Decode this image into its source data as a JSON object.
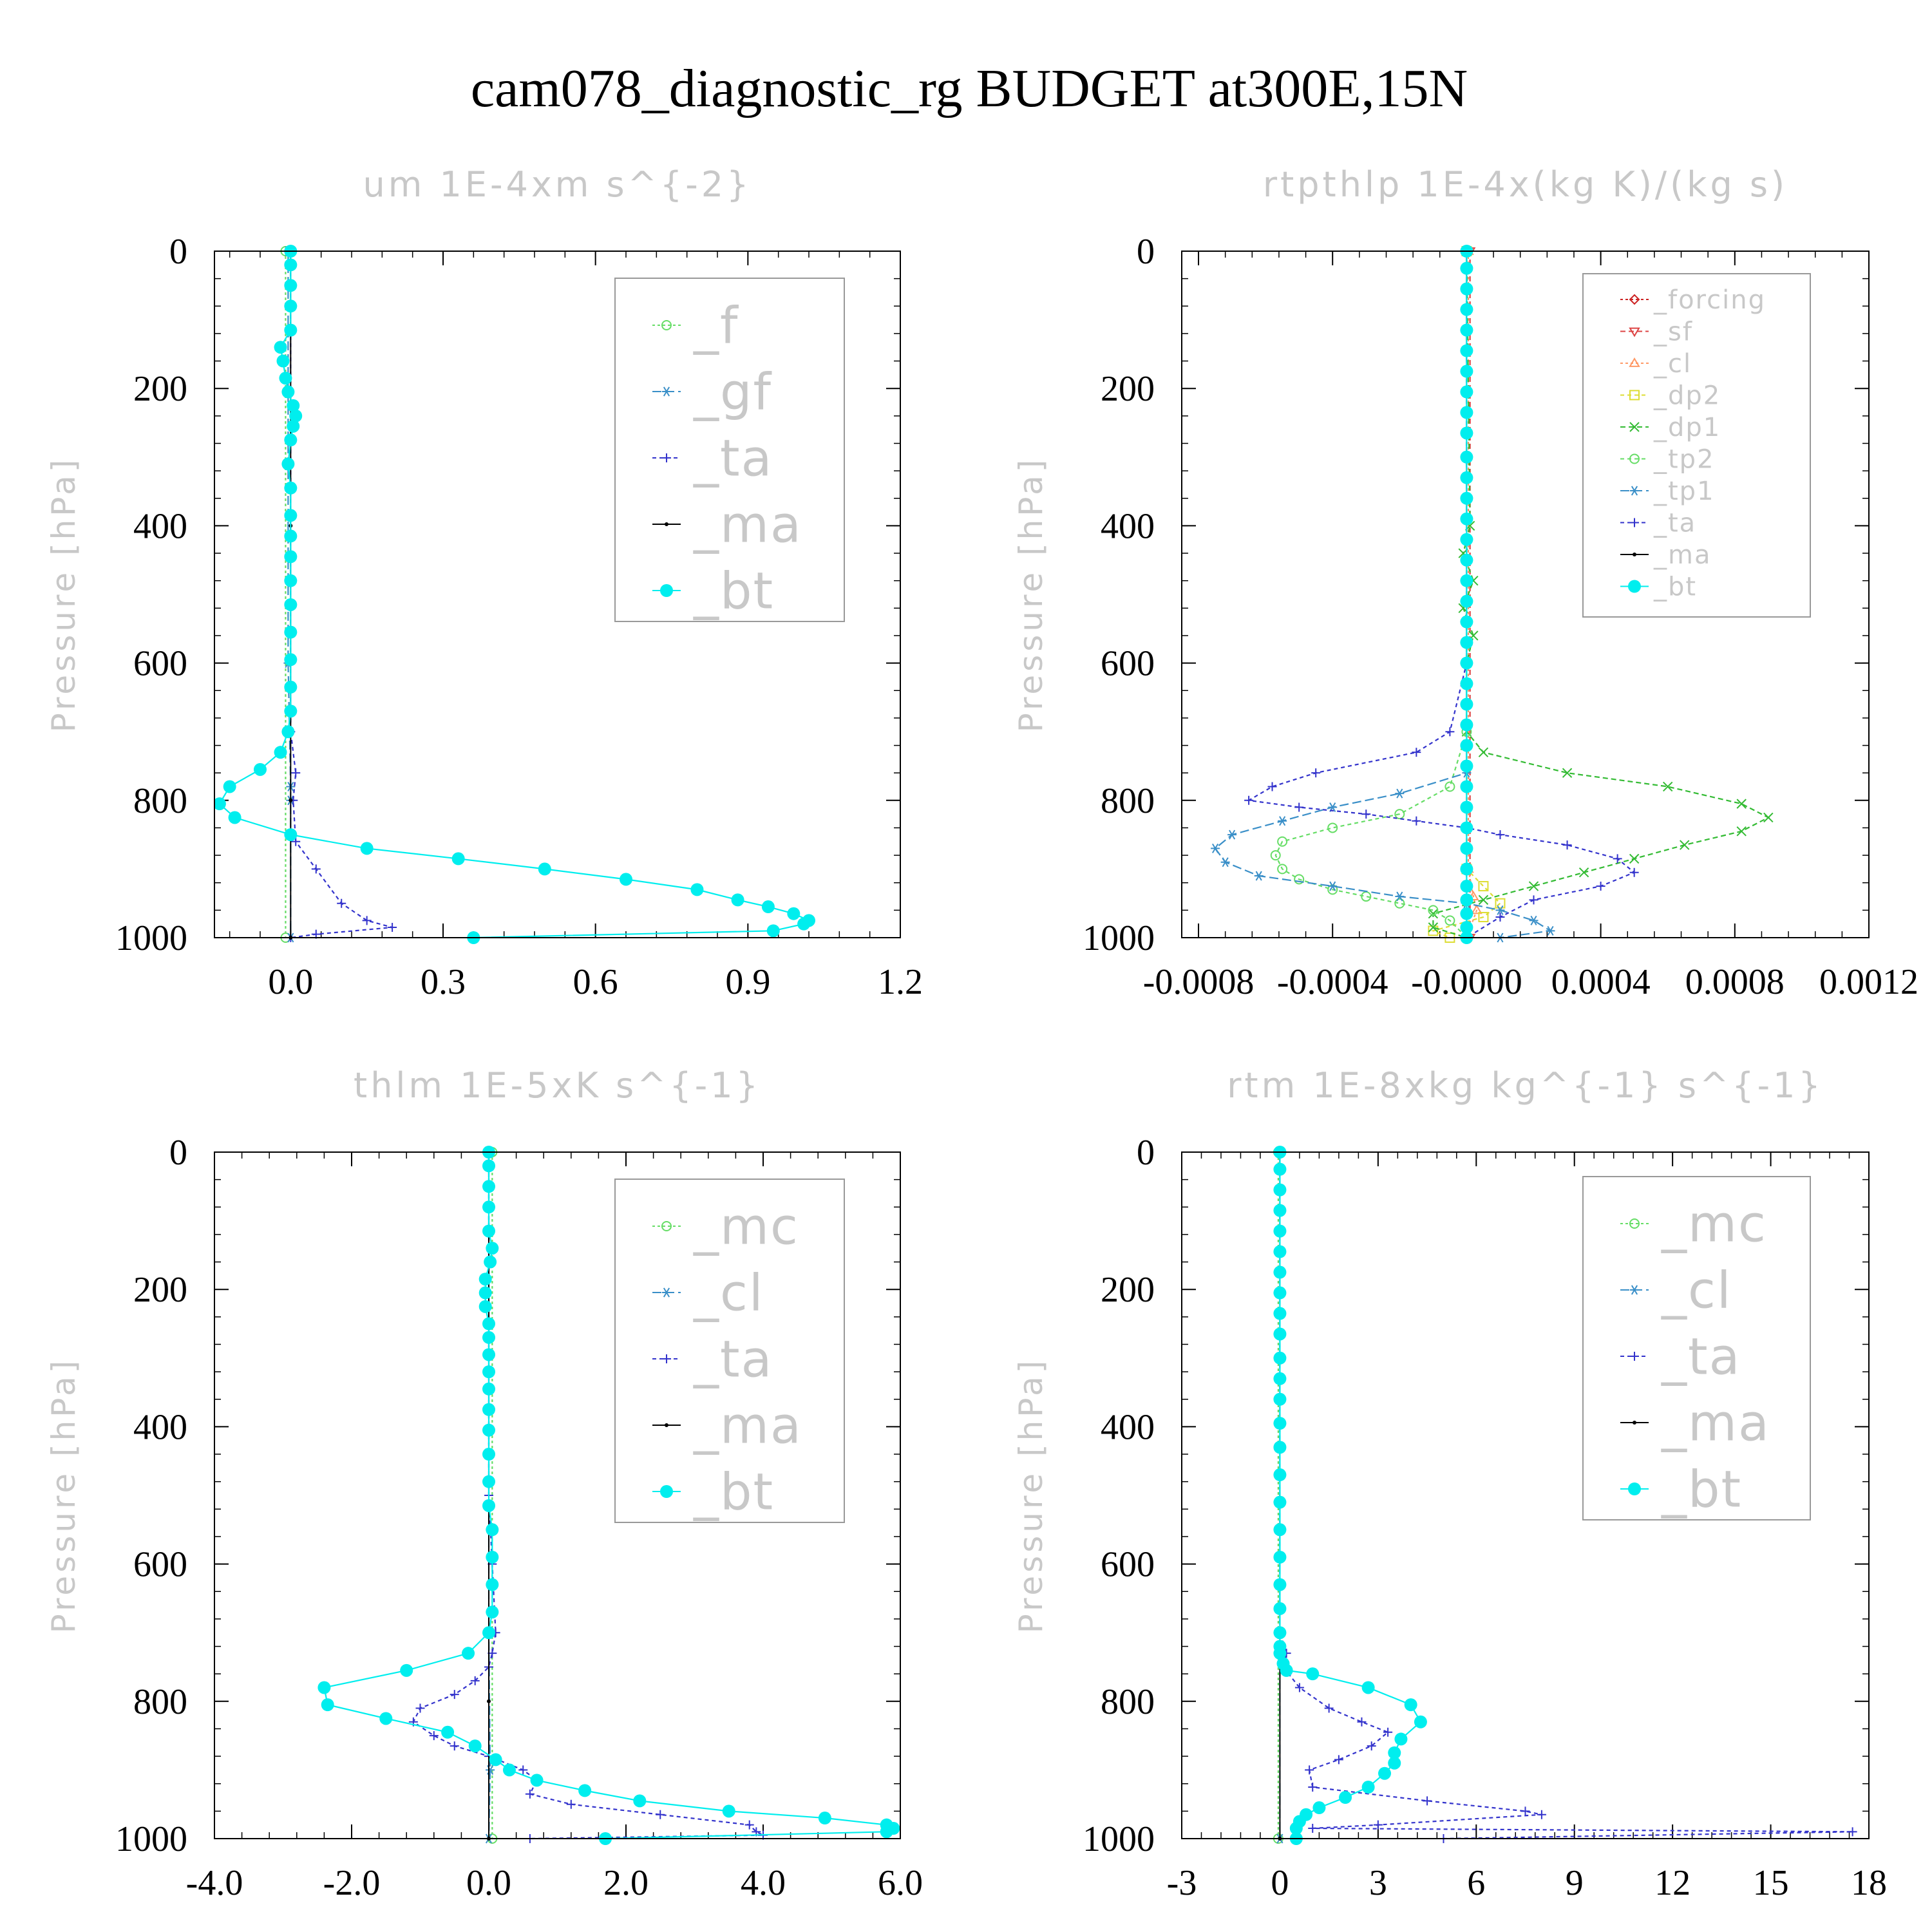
{
  "figure": {
    "title": "cam078_diagnostic_rg  BUDGET at300E,15N"
  },
  "chart_data": [
    {
      "type": "line",
      "title": "um  1E-4xm s^{-2}",
      "ylabel": "Pressure [hPa]",
      "xlim": [
        -0.15,
        1.2
      ],
      "ylim": [
        1000,
        0
      ],
      "xticks": [
        0.0,
        0.3,
        0.6,
        0.9,
        1.2
      ],
      "xtick_labels": [
        "0.0",
        "0.3",
        "0.6",
        "0.9",
        "1.2"
      ],
      "yticks": [
        0,
        200,
        400,
        600,
        800,
        1000
      ],
      "ytick_labels": [
        "0",
        "200",
        "400",
        "600",
        "800",
        "1000"
      ],
      "legend_location": "upper-right",
      "series": [
        {
          "name": "_f",
          "color": "#66dd66",
          "marker": "circle-open",
          "dash": "4,4",
          "x": [
            -0.01,
            -0.01
          ],
          "y": [
            0,
            1000
          ]
        },
        {
          "name": "_gf",
          "color": "#3a8fc8",
          "marker": "asterisk",
          "dash": "14,6",
          "x": [
            -0.005,
            -0.005,
            0,
            0,
            0,
            0
          ],
          "y": [
            0,
            600,
            780,
            800,
            850,
            1000
          ]
        },
        {
          "name": "_ta",
          "color": "#3333cc",
          "marker": "plus",
          "dash": "6,5",
          "x": [
            0,
            0,
            0.01,
            0.005,
            0.01,
            0.05,
            0.1,
            0.15,
            0.2,
            0.05,
            0
          ],
          "y": [
            0,
            700,
            760,
            800,
            860,
            900,
            950,
            975,
            985,
            995,
            1000
          ]
        },
        {
          "name": "_ma",
          "color": "#000000",
          "marker": "dot",
          "dash": "",
          "x": [
            0,
            0,
            0,
            0,
            0,
            0
          ],
          "y": [
            0,
            200,
            400,
            600,
            800,
            1000
          ]
        },
        {
          "name": "_bt",
          "color": "#00eeee",
          "marker": "filled-circle",
          "dash": "",
          "x": [
            0,
            0,
            0,
            0,
            0,
            -0.02,
            -0.015,
            -0.01,
            -0.005,
            0.005,
            0.01,
            0.005,
            0,
            -0.005,
            0,
            0,
            0,
            0,
            0,
            0,
            0,
            0,
            0,
            0,
            -0.005,
            -0.02,
            -0.06,
            -0.12,
            -0.14,
            -0.11,
            0.0,
            0.15,
            0.33,
            0.5,
            0.66,
            0.8,
            0.88,
            0.94,
            0.99,
            1.02,
            1.01,
            0.95,
            0.36
          ],
          "y": [
            0,
            20,
            50,
            80,
            115,
            140,
            160,
            185,
            205,
            225,
            240,
            255,
            275,
            310,
            345,
            385,
            415,
            445,
            480,
            515,
            555,
            595,
            635,
            670,
            700,
            730,
            755,
            780,
            805,
            825,
            850,
            870,
            885,
            900,
            915,
            930,
            945,
            955,
            965,
            975,
            980,
            990,
            1000
          ]
        }
      ]
    },
    {
      "type": "line",
      "title": "rtpthlp  1E-4x(kg K)/(kg s)",
      "ylabel": "Pressure [hPa]",
      "xlim": [
        -0.00085,
        0.0012
      ],
      "ylim": [
        1000,
        0
      ],
      "xticks": [
        -0.0008,
        -0.0004,
        0.0,
        0.0004,
        0.0008,
        0.0012
      ],
      "xtick_labels": [
        "-0.0008",
        "-0.0004",
        "-0.0000",
        "0.0004",
        "0.0008",
        "0.0012"
      ],
      "yticks": [
        0,
        200,
        400,
        600,
        800,
        1000
      ],
      "ytick_labels": [
        "0",
        "200",
        "400",
        "600",
        "800",
        "1000"
      ],
      "legend_location": "upper-right",
      "series": [
        {
          "name": "_forcing",
          "color": "#cc2222",
          "marker": "diamond-open",
          "dash": "4,4",
          "x": [
            0,
            0
          ],
          "y": [
            0,
            1000
          ]
        },
        {
          "name": "_sf",
          "color": "#dd4444",
          "marker": "triangle-down",
          "dash": "8,5",
          "x": [
            1e-05,
            1e-05
          ],
          "y": [
            0,
            1000
          ]
        },
        {
          "name": "_cl",
          "color": "#ff9966",
          "marker": "triangle-up",
          "dash": "4,4",
          "x": [
            5e-06,
            5e-06,
            2e-05,
            3e-05,
            0.0
          ],
          "y": [
            0,
            900,
            940,
            960,
            1000
          ]
        },
        {
          "name": "_dp2",
          "color": "#dddd33",
          "marker": "square-open",
          "dash": "6,5",
          "x": [
            0,
            0,
            5e-05,
            0.0001,
            5e-05,
            -0.0001,
            -5e-05
          ],
          "y": [
            0,
            900,
            925,
            950,
            970,
            990,
            1000
          ]
        },
        {
          "name": "_dp1",
          "color": "#33bb33",
          "marker": "x",
          "dash": "8,5",
          "x": [
            0,
            1e-05,
            -1e-05,
            2e-05,
            -1e-05,
            2e-05,
            0,
            0,
            5e-05,
            0.0003,
            0.0006,
            0.00082,
            0.0009,
            0.00082,
            0.00065,
            0.0005,
            0.00035,
            0.0002,
            5e-05,
            -0.0001,
            -0.0001,
            0.0
          ],
          "y": [
            0,
            400,
            440,
            480,
            520,
            560,
            600,
            700,
            730,
            760,
            780,
            805,
            825,
            845,
            865,
            885,
            905,
            925,
            945,
            965,
            985,
            1000
          ]
        },
        {
          "name": "_tp2",
          "color": "#66dd66",
          "marker": "circle-open",
          "dash": "6,5",
          "x": [
            0,
            0,
            -5e-05,
            -0.0002,
            -0.0004,
            -0.00055,
            -0.00057,
            -0.00055,
            -0.0005,
            -0.0004,
            -0.0003,
            -0.0002,
            -0.0001,
            -5e-05,
            0
          ],
          "y": [
            0,
            700,
            780,
            820,
            840,
            860,
            880,
            900,
            915,
            930,
            940,
            950,
            960,
            975,
            1000
          ]
        },
        {
          "name": "_tp1",
          "color": "#3a8fc8",
          "marker": "asterisk",
          "dash": "14,6",
          "x": [
            0,
            0,
            -0.0002,
            -0.0004,
            -0.00055,
            -0.0007,
            -0.00075,
            -0.00072,
            -0.00062,
            -0.0004,
            -0.0002,
            0,
            0.0001,
            0.0002,
            0.00025,
            0.0001
          ],
          "y": [
            0,
            760,
            790,
            810,
            830,
            850,
            870,
            890,
            910,
            925,
            940,
            950,
            960,
            975,
            990,
            1000
          ]
        },
        {
          "name": "_ta",
          "color": "#3333cc",
          "marker": "plus",
          "dash": "6,5",
          "x": [
            0,
            0,
            -5e-05,
            -0.00015,
            -0.00045,
            -0.00058,
            -0.00065,
            -0.0005,
            -0.0003,
            -0.00015,
            0,
            0.0001,
            0.0003,
            0.00045,
            0.0005,
            0.0004,
            0.0002,
            0.0001,
            0
          ],
          "y": [
            0,
            600,
            700,
            730,
            760,
            780,
            800,
            810,
            820,
            830,
            840,
            850,
            865,
            885,
            905,
            925,
            945,
            970,
            1000
          ]
        },
        {
          "name": "_ma",
          "color": "#000000",
          "marker": "dot",
          "dash": "",
          "x": [
            0,
            0
          ],
          "y": [
            0,
            1000
          ]
        },
        {
          "name": "_bt",
          "color": "#00eeee",
          "marker": "filled-circle",
          "dash": "",
          "x": [
            0,
            0,
            0,
            0,
            0,
            0,
            0,
            0,
            0,
            0,
            0,
            0,
            0,
            0,
            0,
            0,
            0,
            0,
            0,
            0,
            0,
            0,
            0,
            0,
            0,
            0,
            0,
            0,
            0,
            0,
            0,
            0,
            0,
            0,
            0,
            0
          ],
          "y": [
            0,
            25,
            55,
            85,
            115,
            145,
            175,
            205,
            235,
            265,
            300,
            330,
            360,
            390,
            420,
            450,
            480,
            510,
            540,
            570,
            600,
            630,
            660,
            690,
            720,
            750,
            780,
            810,
            840,
            870,
            900,
            925,
            945,
            965,
            985,
            1000
          ]
        }
      ]
    },
    {
      "type": "line",
      "title": "thlm  1E-5xK s^{-1}",
      "ylabel": "Pressure [hPa]",
      "xlim": [
        -4.0,
        6.0
      ],
      "ylim": [
        1000,
        0
      ],
      "xticks": [
        -4.0,
        -2.0,
        0.0,
        2.0,
        4.0,
        6.0
      ],
      "xtick_labels": [
        "-4.0",
        "-2.0",
        "0.0",
        "2.0",
        "4.0",
        "6.0"
      ],
      "yticks": [
        0,
        200,
        400,
        600,
        800,
        1000
      ],
      "ytick_labels": [
        "0",
        "200",
        "400",
        "600",
        "800",
        "1000"
      ],
      "legend_location": "upper-right",
      "series": [
        {
          "name": "_mc",
          "color": "#66dd66",
          "marker": "circle-open",
          "dash": "4,4",
          "x": [
            0.05,
            0.05
          ],
          "y": [
            0,
            1000
          ]
        },
        {
          "name": "_cl",
          "color": "#3a8fc8",
          "marker": "asterisk",
          "dash": "14,6",
          "x": [
            0.0,
            0.0,
            0.02,
            0.0
          ],
          "y": [
            0,
            700,
            900,
            1000
          ]
        },
        {
          "name": "_ta",
          "color": "#3333cc",
          "marker": "plus",
          "dash": "6,5",
          "x": [
            0,
            0,
            0,
            0.05,
            0.1,
            0.05,
            0,
            -0.2,
            -0.5,
            -1.0,
            -1.1,
            -0.8,
            -0.5,
            0,
            0.5,
            0.7,
            0.6,
            1.2,
            2.5,
            3.8,
            3.9,
            4.0,
            0.6
          ],
          "y": [
            0,
            300,
            500,
            600,
            700,
            730,
            750,
            770,
            790,
            810,
            830,
            850,
            865,
            880,
            900,
            915,
            935,
            950,
            965,
            980,
            990,
            995,
            1000
          ]
        },
        {
          "name": "_ma",
          "color": "#000000",
          "marker": "dot",
          "dash": "",
          "x": [
            0,
            0,
            0,
            0
          ],
          "y": [
            0,
            400,
            800,
            1000
          ]
        },
        {
          "name": "_bt",
          "color": "#00eeee",
          "marker": "filled-circle",
          "dash": "",
          "x": [
            0,
            0,
            0,
            0,
            0,
            0.05,
            0.02,
            -0.05,
            -0.05,
            -0.05,
            0,
            0,
            0,
            0,
            0,
            0,
            0,
            0,
            0,
            0,
            0.05,
            0.05,
            0.05,
            0.05,
            0,
            -0.3,
            -1.2,
            -2.4,
            -2.35,
            -1.5,
            -0.6,
            -0.2,
            0.1,
            0.3,
            0.7,
            1.4,
            2.2,
            3.5,
            4.9,
            5.8,
            5.9,
            5.8,
            1.7
          ],
          "y": [
            0,
            20,
            50,
            80,
            115,
            140,
            160,
            185,
            205,
            225,
            250,
            270,
            295,
            320,
            345,
            375,
            405,
            440,
            480,
            515,
            550,
            590,
            630,
            670,
            700,
            730,
            755,
            780,
            805,
            825,
            845,
            865,
            885,
            900,
            915,
            930,
            945,
            960,
            970,
            980,
            985,
            990,
            1000
          ]
        }
      ]
    },
    {
      "type": "line",
      "title": "rtm  1E-8xkg kg^{-1} s^{-1}",
      "ylabel": "Pressure [hPa]",
      "xlim": [
        -3,
        18
      ],
      "ylim": [
        1000,
        0
      ],
      "xticks": [
        -3,
        0,
        3,
        6,
        9,
        12,
        15,
        18
      ],
      "xtick_labels": [
        "-3",
        "0",
        "3",
        "6",
        "9",
        "12",
        "15",
        "18"
      ],
      "yticks": [
        0,
        200,
        400,
        600,
        800,
        1000
      ],
      "ytick_labels": [
        "0",
        "200",
        "400",
        "600",
        "800",
        "1000"
      ],
      "legend_location": "upper-right",
      "series": [
        {
          "name": "_mc",
          "color": "#66dd66",
          "marker": "circle-open",
          "dash": "4,4",
          "x": [
            -0.05,
            -0.05
          ],
          "y": [
            0,
            1000
          ]
        },
        {
          "name": "_cl",
          "color": "#3a8fc8",
          "marker": "asterisk",
          "dash": "14,6",
          "x": [
            0,
            0
          ],
          "y": [
            0,
            1000
          ]
        },
        {
          "name": "_ta",
          "color": "#3333cc",
          "marker": "plus",
          "dash": "6,5",
          "x": [
            0,
            0,
            0.2,
            0.1,
            0.6,
            1.5,
            2.5,
            3.3,
            2.8,
            1.8,
            0.9,
            1.0,
            4.5,
            7.5,
            8.0,
            3.0,
            1.0,
            17.5,
            5.0
          ],
          "y": [
            0,
            700,
            730,
            750,
            780,
            810,
            830,
            845,
            865,
            885,
            900,
            925,
            945,
            960,
            965,
            980,
            985,
            990,
            1000
          ]
        },
        {
          "name": "_ma",
          "color": "#000000",
          "marker": "dot",
          "dash": "",
          "x": [
            0,
            0
          ],
          "y": [
            0,
            1000
          ]
        },
        {
          "name": "_bt",
          "color": "#00eeee",
          "marker": "filled-circle",
          "dash": "",
          "x": [
            0,
            0,
            0,
            0,
            0,
            0,
            0,
            0,
            0,
            0,
            0,
            0,
            0,
            0,
            0,
            0,
            0,
            0,
            0,
            0,
            0,
            0,
            0,
            0,
            0.1,
            0.2,
            1.0,
            2.7,
            4.0,
            4.3,
            3.7,
            3.5,
            3.5,
            3.2,
            2.7,
            2.0,
            1.2,
            0.8,
            0.6,
            0.5,
            0.5
          ],
          "y": [
            0,
            25,
            55,
            85,
            115,
            145,
            175,
            205,
            235,
            265,
            300,
            330,
            360,
            395,
            430,
            470,
            510,
            550,
            590,
            630,
            665,
            700,
            720,
            730,
            745,
            755,
            760,
            780,
            805,
            830,
            855,
            875,
            890,
            905,
            925,
            940,
            955,
            965,
            975,
            985,
            1000
          ]
        }
      ]
    }
  ]
}
